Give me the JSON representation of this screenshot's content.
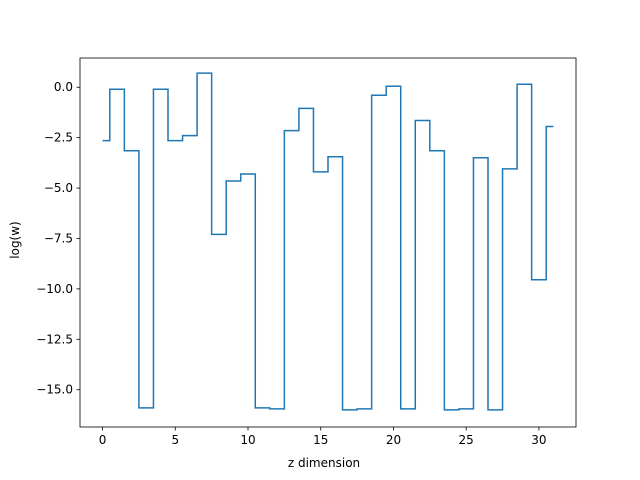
{
  "chart_data": {
    "type": "line",
    "drawstyle": "steps-mid",
    "title": "",
    "xlabel": "z dimension",
    "ylabel": "log(w)",
    "xlim": [
      -1.55,
      32.55
    ],
    "ylim": [
      -16.85,
      1.45
    ],
    "xticks": [
      0,
      5,
      10,
      15,
      20,
      25,
      30
    ],
    "xtick_labels": [
      "0",
      "5",
      "10",
      "15",
      "20",
      "25",
      "30"
    ],
    "yticks": [
      0.0,
      -2.5,
      -5.0,
      -7.5,
      -10.0,
      -12.5,
      -15.0
    ],
    "ytick_labels": [
      "0.0",
      "−2.5",
      "−5.0",
      "−7.5",
      "−10.0",
      "−12.5",
      "−15.0"
    ],
    "grid": false,
    "legend": false,
    "series": [
      {
        "color": "#1f77b4",
        "x": [
          0,
          1,
          2,
          3,
          4,
          5,
          6,
          7,
          8,
          9,
          10,
          11,
          12,
          13,
          14,
          15,
          16,
          17,
          18,
          19,
          20,
          21,
          22,
          23,
          24,
          25,
          26,
          27,
          28,
          29,
          30,
          31
        ],
        "y": [
          -2.65,
          -0.1,
          -3.15,
          -15.9,
          -0.1,
          -2.65,
          -2.4,
          0.7,
          -7.3,
          -4.65,
          -4.3,
          -15.9,
          -15.95,
          -2.15,
          -1.05,
          -4.2,
          -3.45,
          -16.0,
          -15.95,
          -0.4,
          0.05,
          -15.95,
          -1.65,
          -3.15,
          -16.0,
          -15.95,
          -3.5,
          -16.0,
          -4.05,
          0.15,
          -9.55,
          -1.95
        ]
      }
    ]
  }
}
